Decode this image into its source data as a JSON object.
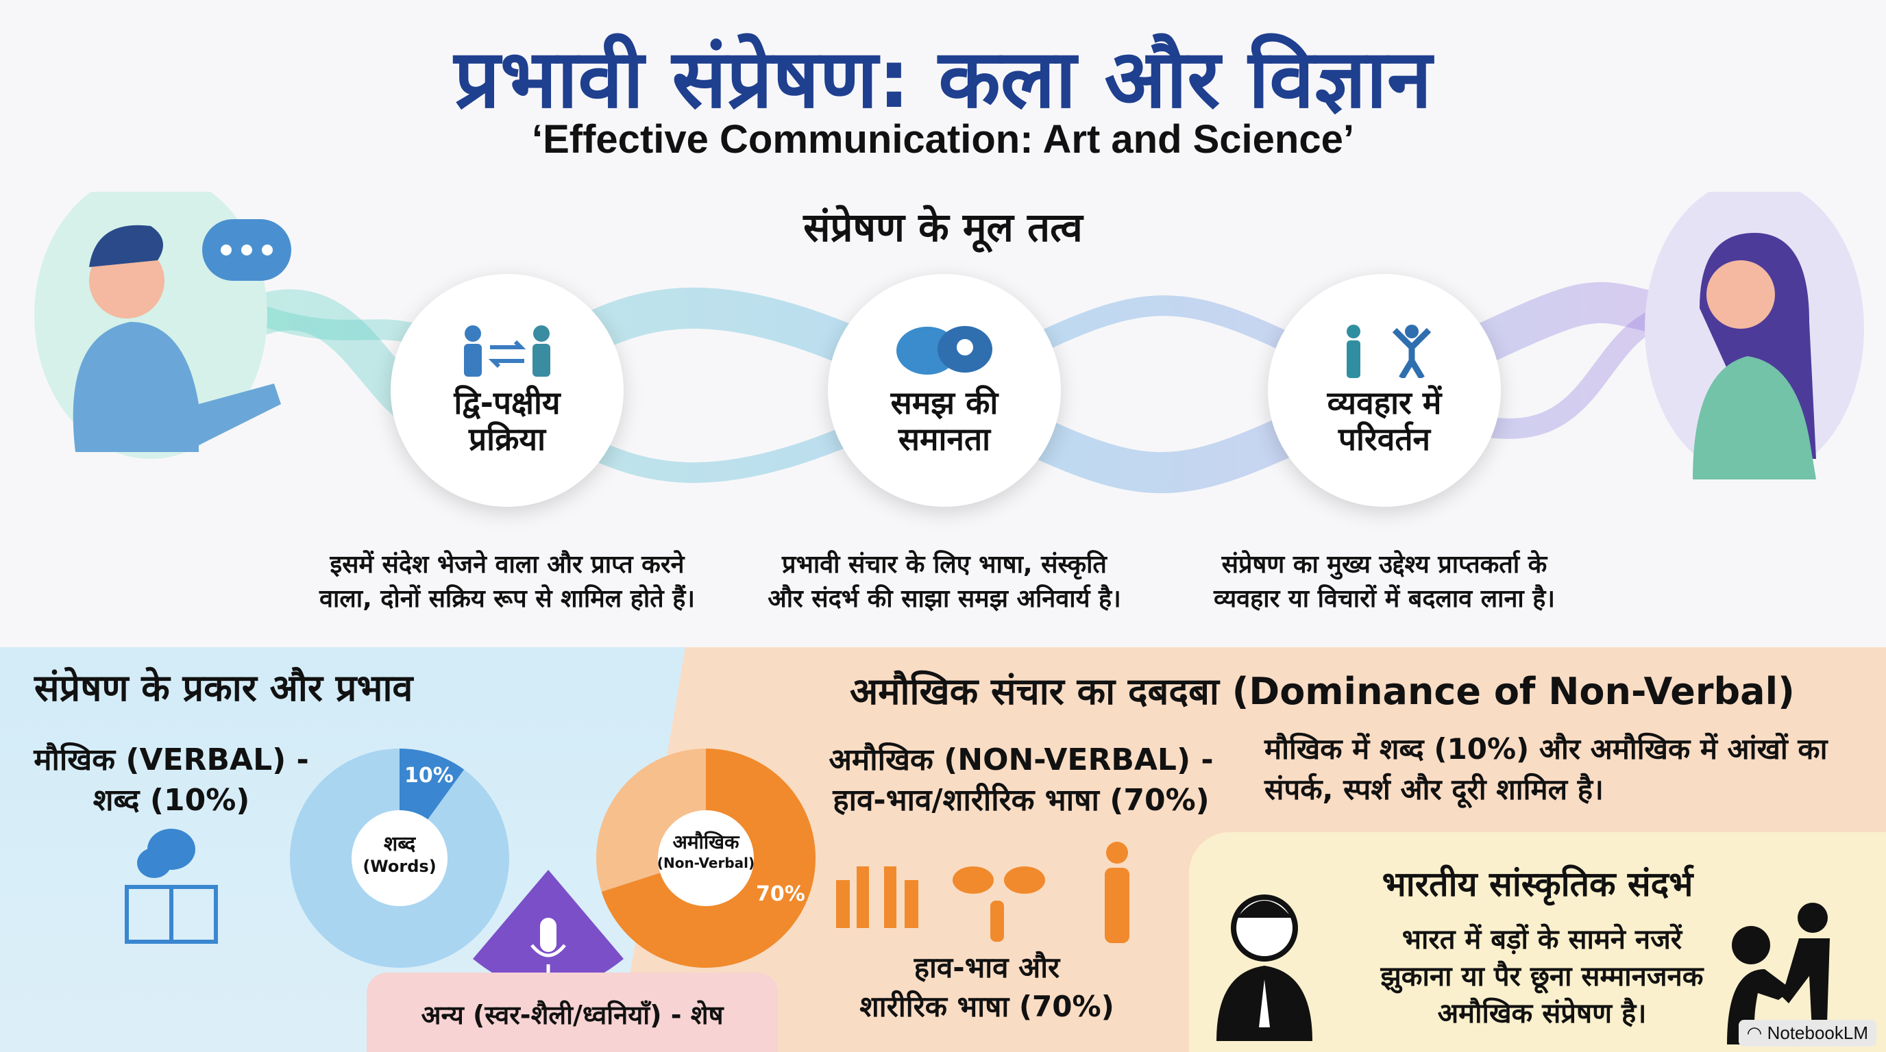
{
  "header": {
    "title": "प्रभावी संप्रेषण: कला और विज्ञान",
    "subtitle": "‘Effective Communication: Art and Science’",
    "section_title": "संप्रेषण के मूल तत्व"
  },
  "elements": [
    {
      "label_1": "द्वि-पक्षीय",
      "label_2": "प्रक्रिया",
      "desc_1": "इसमें संदेश भेजने वाला और प्राप्त करने",
      "desc_2": "वाला, दोनों सक्रिय रूप से शामिल होते हैं।",
      "icon": "two-way-exchange-icon"
    },
    {
      "label_1": "समझ की",
      "label_2": "समानता",
      "desc_1": "प्रभावी संचार के लिए भाषा, संस्कृति",
      "desc_2": "और संदर्भ की साझा समझ अनिवार्य है।",
      "icon": "speech-bubbles-lightbulb-icon"
    },
    {
      "label_1": "व्यवहार में",
      "label_2": "परिवर्तन",
      "desc_1": "संप्रेषण का मुख्य उद्देश्य प्राप्तकर्ता के",
      "desc_2": "व्यवहार या विचारों में बदलाव लाना है।",
      "icon": "behavior-change-icon"
    }
  ],
  "types": {
    "title": "संप्रेषण के प्रकार और प्रभाव",
    "verbal_1": "मौखिक (VERBAL) -",
    "verbal_2": "शब्द (10%)",
    "words_center": "शब्द",
    "words_sub": "(Words)",
    "words_pct": "10%",
    "words_value": 10,
    "other_label": "अन्य (स्वर-शैली/ध्वनियाँ) - शेष"
  },
  "nonverbal": {
    "title": "अमौखिक संचार का दबदबा (Dominance of Non-Verbal)",
    "label_1": "अमौखिक (NON-VERBAL) -",
    "label_2": "हाव-भाव/शारीरिक भाषा (70%)",
    "center": "अमौखिक",
    "center_sub": "(Non-Verbal)",
    "pct": "70%",
    "value": 70,
    "caption_1": "हाव-भाव और",
    "caption_2": "शारीरिक भाषा (70%)",
    "note_1": "मौखिक में शब्द (10%) और अमौखिक में आंखों का",
    "note_2": "संपर्क, स्पर्श और दूरी शामिल है।"
  },
  "culture": {
    "title": "भारतीय सांस्कृतिक संदर्भ",
    "text_1": "भारत में बड़ों के सामने नजरें",
    "text_2": "झुकाना या पैर छूना सम्मानजनक",
    "text_3": "अमौखिक संप्रेषण है।"
  },
  "badge": "NotebookLM",
  "colors": {
    "title": "#1f3f8f",
    "blue": "#3a86d0",
    "orange": "#f08a2c",
    "purple": "#7b4fc8"
  }
}
